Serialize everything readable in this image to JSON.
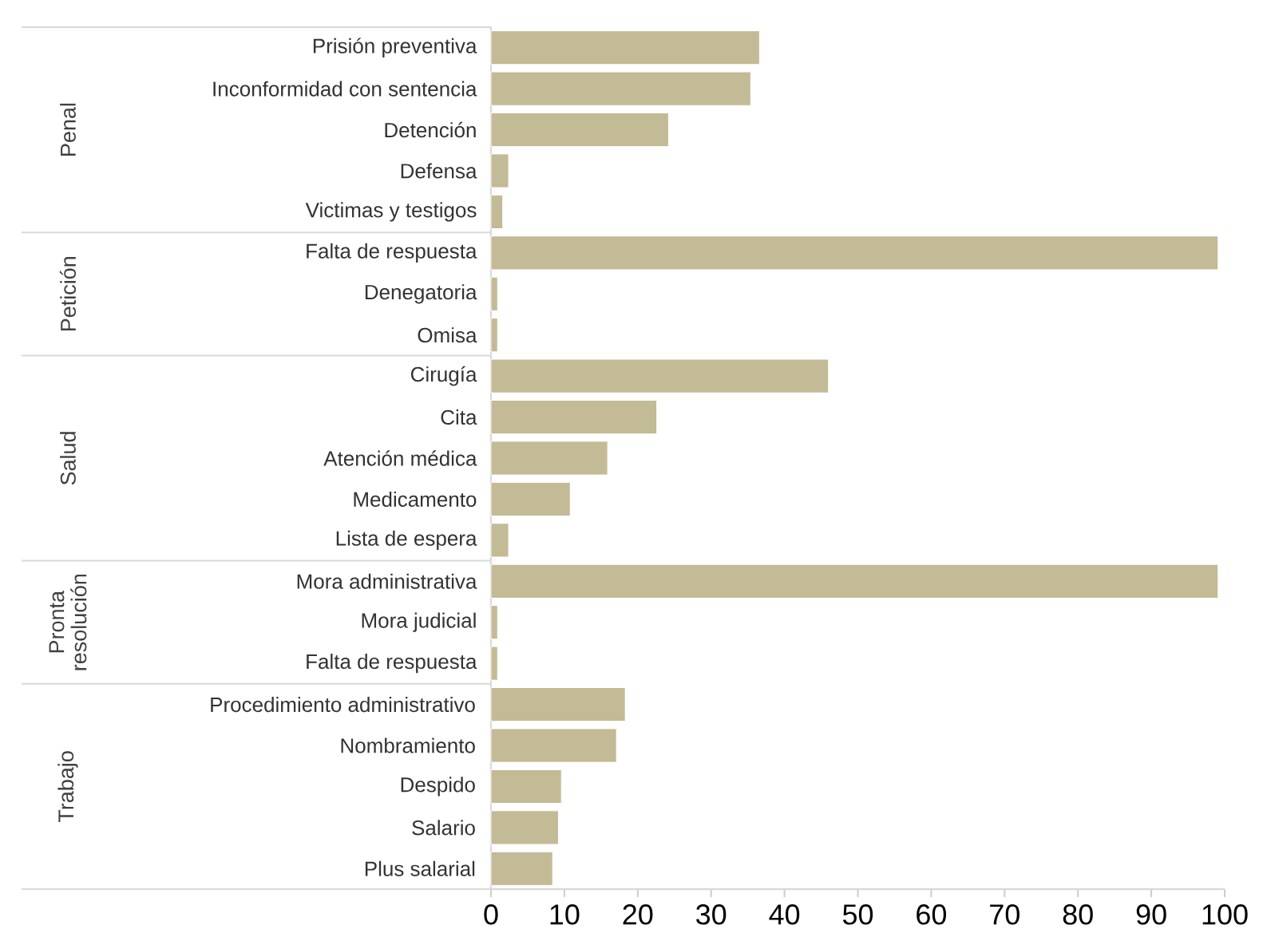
{
  "chart_data": [
    {
      "type": "bar",
      "orientation": "horizontal",
      "ylabel": "Penal",
      "categories": [
        "Prisión preventiva",
        "Inconformidad con sentencia",
        "Detención",
        "Defensa",
        "Victimas y testigos"
      ],
      "values": [
        36.6,
        35.4,
        24.2,
        2.4,
        1.6
      ],
      "color": "#c3ba96",
      "xlim": [
        0,
        100
      ],
      "xticks": [
        0,
        10,
        20,
        30,
        40,
        50,
        60,
        70,
        80,
        90,
        100
      ],
      "tick_labels": "y"
    },
    {
      "type": "bar",
      "orientation": "horizontal",
      "ylabel": "Petición",
      "categories": [
        "Falta de respuesta",
        "Denegatoria",
        "Omisa"
      ],
      "values": [
        99.1,
        0.9,
        0.9
      ],
      "color": "#c3ba96",
      "xlim": [
        0,
        100
      ],
      "xticks": [
        0,
        10,
        20,
        30,
        40,
        50,
        60,
        70,
        80,
        90,
        100
      ],
      "tick_labels": "y"
    },
    {
      "type": "bar",
      "orientation": "horizontal",
      "ylabel": "Salud",
      "categories": [
        "Cirugía",
        "Cita",
        "Atención médica",
        "Medicamento",
        "Lista de espera"
      ],
      "values": [
        46.0,
        22.6,
        15.9,
        10.8,
        2.4
      ],
      "color": "#c3ba96",
      "xlim": [
        0,
        100
      ],
      "xticks": [
        0,
        10,
        20,
        30,
        40,
        50,
        60,
        70,
        80,
        90,
        100
      ],
      "tick_labels": "y"
    },
    {
      "type": "bar",
      "orientation": "horizontal",
      "ylabel": "Pronta resolución",
      "categories": [
        "Mora administrativa",
        "Mora judicial",
        "Falta de respuesta"
      ],
      "values": [
        99.1,
        0.9,
        0.9
      ],
      "color": "#c3ba96",
      "xlim": [
        0,
        100
      ],
      "xticks": [
        0,
        10,
        20,
        30,
        40,
        50,
        60,
        70,
        80,
        90,
        100
      ],
      "tick_labels": "y"
    },
    {
      "type": "bar",
      "orientation": "horizontal",
      "ylabel": "Trabajo",
      "categories": [
        "Procedimiento administrativo",
        "Nombramiento",
        "Despido",
        "Salario",
        "Plus salarial"
      ],
      "values": [
        18.3,
        17.1,
        9.6,
        9.2,
        8.4
      ],
      "color": "#c3ba96",
      "xlim": [
        0,
        100
      ],
      "xticks": [
        0,
        10,
        20,
        30,
        40,
        50,
        60,
        70,
        80,
        90,
        100
      ]
    }
  ]
}
